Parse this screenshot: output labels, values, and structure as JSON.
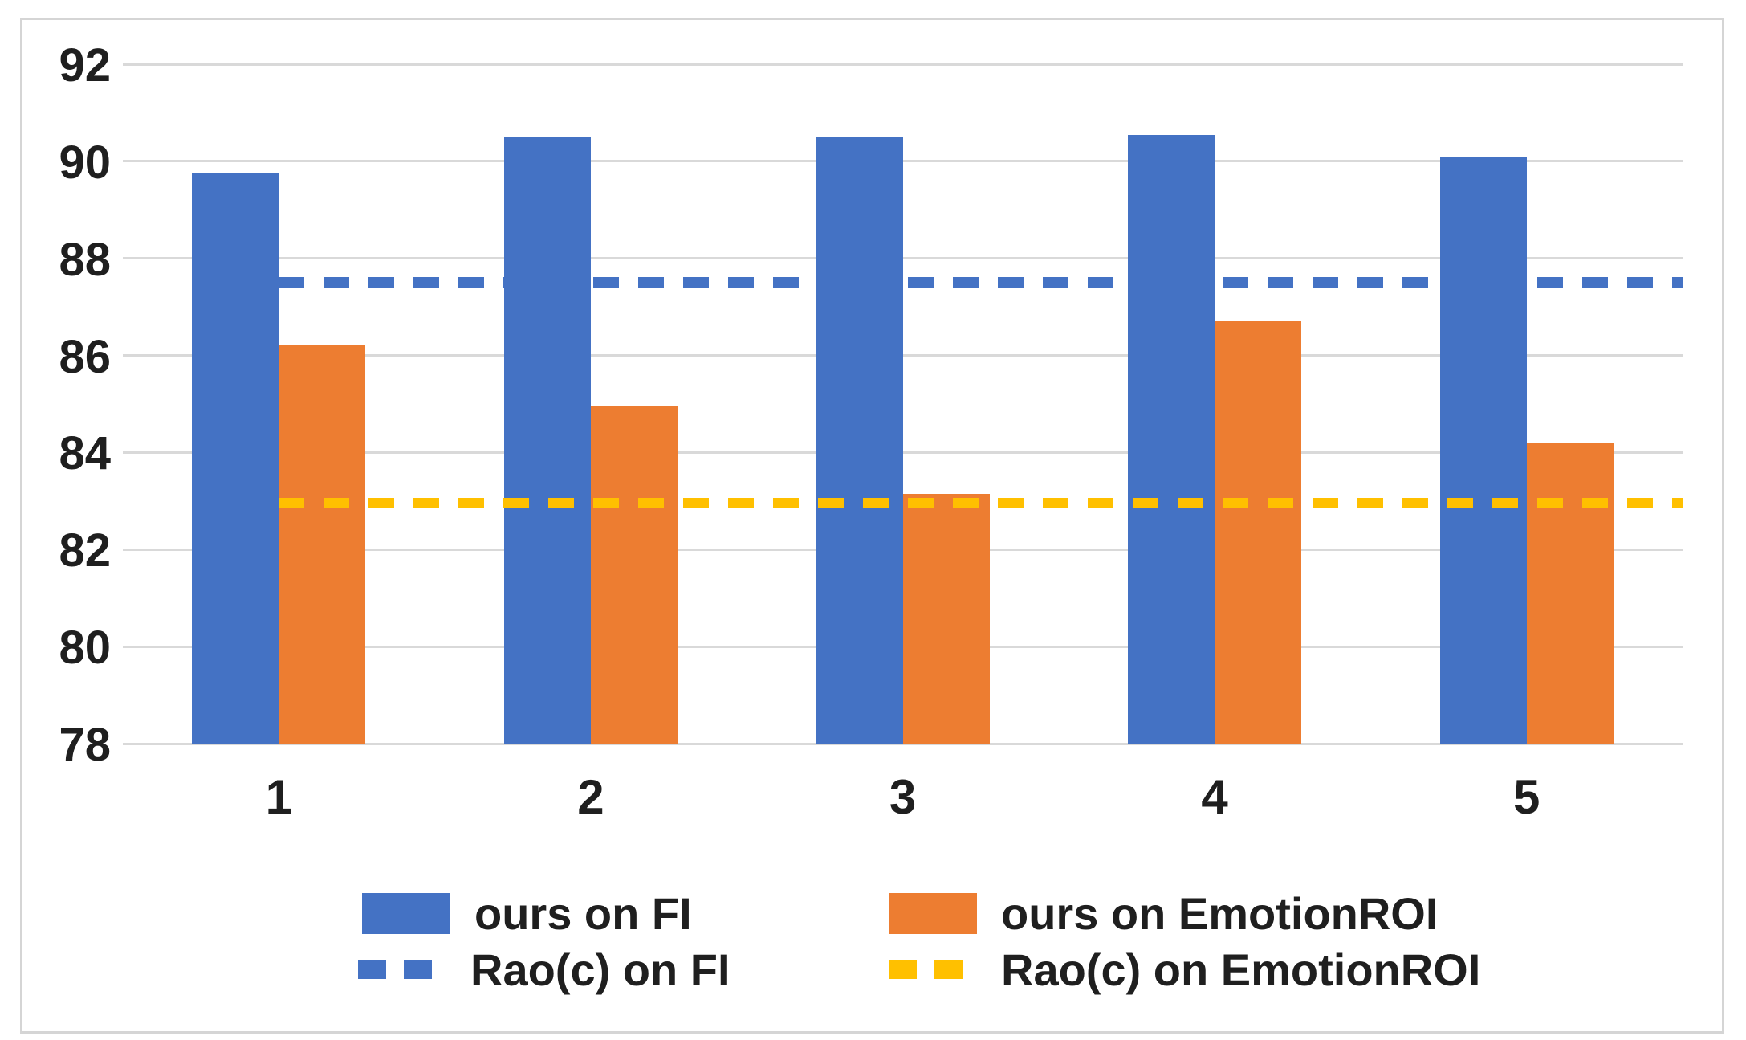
{
  "figure": {
    "background": "#ffffff",
    "border_color": "#d5d5d5",
    "text_color": "#1f1f1f",
    "gridline_color": "#d9d9d9"
  },
  "chart_data": {
    "type": "bar",
    "title": "",
    "xlabel": "",
    "ylabel": "",
    "categories": [
      "1",
      "2",
      "3",
      "4",
      "5"
    ],
    "series": [
      {
        "name": "ours on FI",
        "kind": "bar",
        "color": "#4472C4",
        "values": [
          89.75,
          90.5,
          90.5,
          90.55,
          90.1
        ]
      },
      {
        "name": "ours on EmotionROI",
        "kind": "bar",
        "color": "#ED7D31",
        "values": [
          86.2,
          84.95,
          83.15,
          86.7,
          84.2
        ]
      },
      {
        "name": "Rao(c) on FI",
        "kind": "dashed-hline",
        "color": "#4472C4",
        "value": 87.5
      },
      {
        "name": "Rao(c) on EmotionROI",
        "kind": "dashed-hline",
        "color": "#FFC000",
        "value": 82.95
      }
    ],
    "ylim": [
      78,
      92
    ],
    "yticks": [
      78,
      80,
      82,
      84,
      86,
      88,
      90,
      92
    ],
    "grid": true,
    "legend_position": "bottom",
    "hlines_start_at": "category-1-center"
  },
  "legend": {
    "items": [
      {
        "label": "ours on FI",
        "swatch": "bar",
        "color": "#4472C4"
      },
      {
        "label": "ours on EmotionROI",
        "swatch": "bar",
        "color": "#ED7D31"
      },
      {
        "label": "Rao(c) on FI",
        "swatch": "dashed-line",
        "color": "#4472C4"
      },
      {
        "label": "Rao(c) on EmotionROI",
        "swatch": "dashed-line",
        "color": "#FFC000"
      }
    ]
  }
}
